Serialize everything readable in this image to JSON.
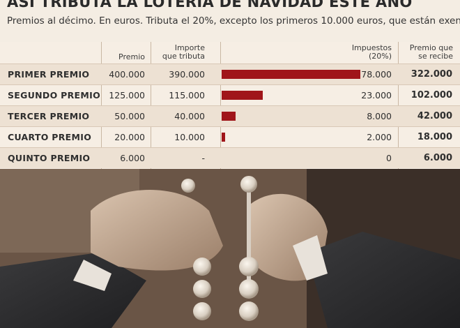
{
  "header": {
    "title": "ASÍ TRIBUTA LA LOTERÍA DE NAVIDAD ESTE AÑO",
    "subtitle": "Premios al décimo. En euros. Tributa el 20%, excepto los primeros 10.000 euros, que están exentos"
  },
  "columns": {
    "premio": "Premio",
    "importe_line1": "Importe",
    "importe_line2": "que tributa",
    "impuestos_line1": "Impuestos",
    "impuestos_line2": "(20%)",
    "recibe_line1": "Premio que",
    "recibe_line2": "se recibe"
  },
  "chart_data": {
    "type": "table",
    "title": "ASÍ TRIBUTA LA LOTERÍA DE NAVIDAD ESTE AÑO",
    "subtitle": "Premios al décimo. En euros. Tributa el 20%, excepto los primeros 10.000 euros, que están exentos",
    "bar_max": 78000,
    "rows": [
      {
        "name": "PRIMER PREMIO",
        "premio": "400.000",
        "importe": "390.000",
        "impuestos": "78.000",
        "impuestos_value": 78000,
        "recibe": "322.000"
      },
      {
        "name": "SEGUNDO PREMIO",
        "premio": "125.000",
        "importe": "115.000",
        "impuestos": "23.000",
        "impuestos_value": 23000,
        "recibe": "102.000"
      },
      {
        "name": "TERCER PREMIO",
        "premio": "50.000",
        "importe": "40.000",
        "impuestos": "8.000",
        "impuestos_value": 8000,
        "recibe": "42.000"
      },
      {
        "name": "CUARTO PREMIO",
        "premio": "20.000",
        "importe": "10.000",
        "impuestos": "2.000",
        "impuestos_value": 2000,
        "recibe": "18.000"
      },
      {
        "name": "QUINTO PREMIO",
        "premio": "6.000",
        "importe": "-",
        "impuestos": "0",
        "impuestos_value": 0,
        "recibe": "6.000"
      }
    ]
  },
  "colors": {
    "bar": "#a0151a",
    "background": "#f4ede3"
  }
}
